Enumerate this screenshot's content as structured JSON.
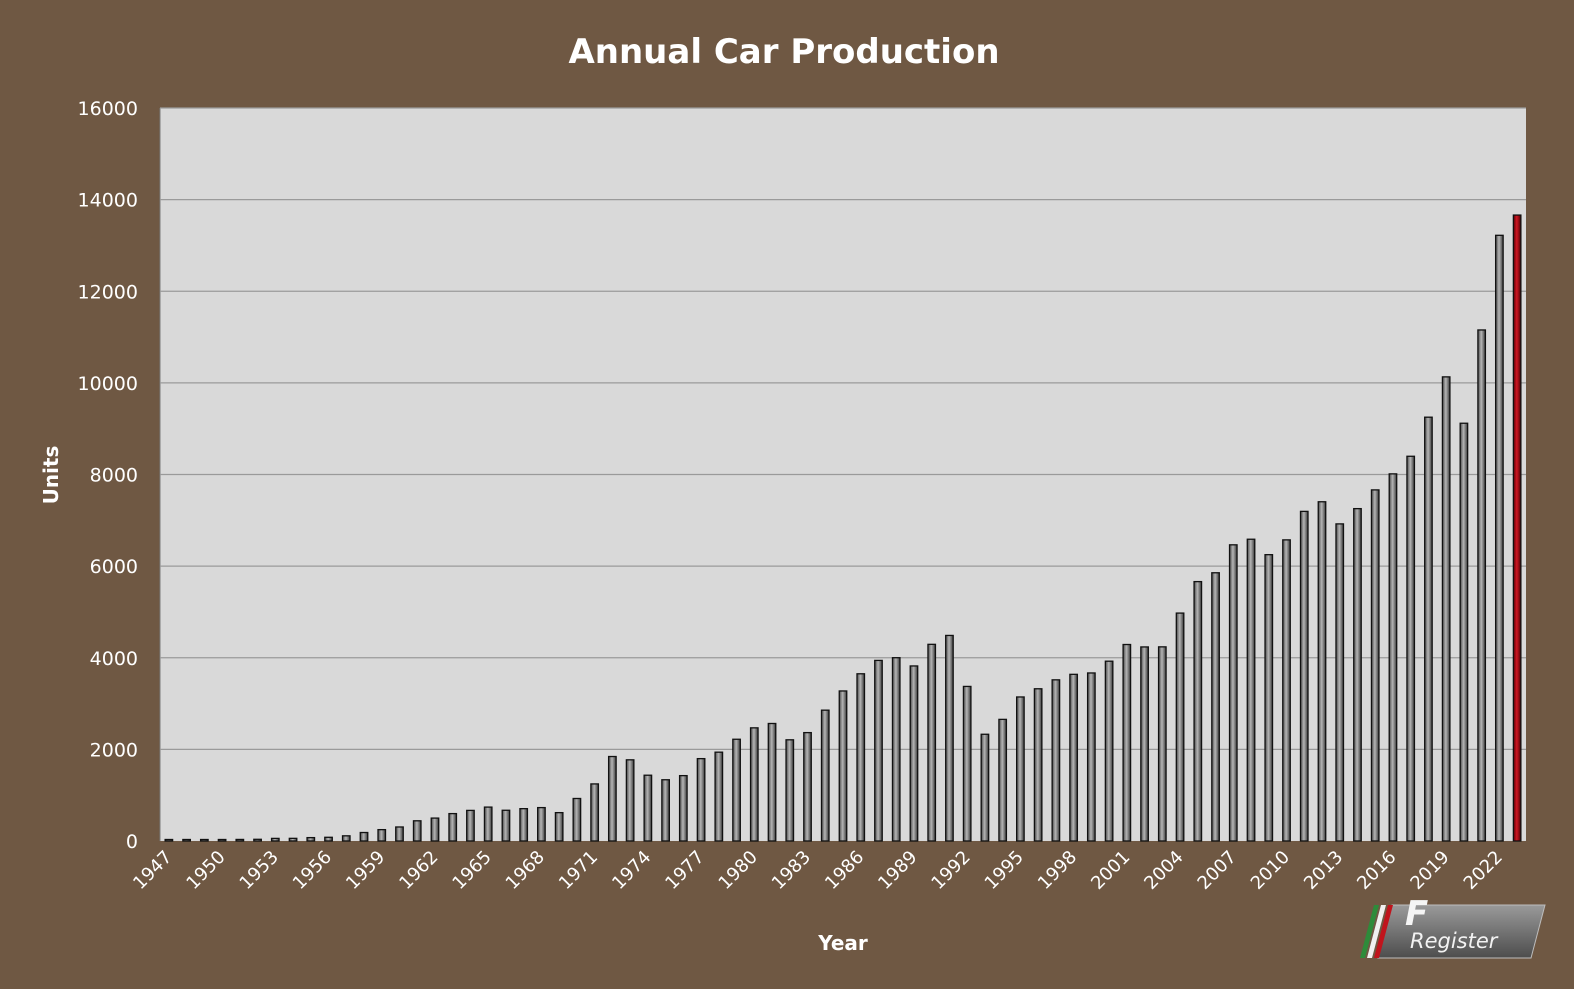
{
  "chart_data": {
    "type": "bar",
    "title": "Annual Car Production",
    "xlabel": "Year",
    "ylabel": "Units",
    "ylim": [
      0,
      16000
    ],
    "yticks": [
      0,
      2000,
      4000,
      6000,
      8000,
      10000,
      12000,
      14000,
      16000
    ],
    "ytick_labels": [
      "0",
      "2000",
      "4000",
      "6000",
      "8000",
      "10000",
      "12000",
      "14000",
      "16000"
    ],
    "xtick_labels": [
      "1947",
      "1950",
      "1953",
      "1956",
      "1959",
      "1962",
      "1965",
      "1968",
      "1971",
      "1974",
      "1977",
      "1980",
      "1983",
      "1986",
      "1989",
      "1992",
      "1995",
      "1998",
      "2001",
      "2004",
      "2007",
      "2010",
      "2013",
      "2016",
      "2019",
      "2022"
    ],
    "grid": true,
    "categories": [
      "1947",
      "1948",
      "1949",
      "1950",
      "1951",
      "1952",
      "1953",
      "1954",
      "1955",
      "1956",
      "1957",
      "1958",
      "1959",
      "1960",
      "1961",
      "1962",
      "1963",
      "1964",
      "1965",
      "1966",
      "1967",
      "1968",
      "1969",
      "1970",
      "1971",
      "1972",
      "1973",
      "1974",
      "1975",
      "1976",
      "1977",
      "1978",
      "1979",
      "1980",
      "1981",
      "1982",
      "1983",
      "1984",
      "1985",
      "1986",
      "1987",
      "1988",
      "1989",
      "1990",
      "1991",
      "1992",
      "1993",
      "1994",
      "1995",
      "1996",
      "1997",
      "1998",
      "1999",
      "2000",
      "2001",
      "2002",
      "2003",
      "2004",
      "2005",
      "2006",
      "2007",
      "2008",
      "2009",
      "2010",
      "2011",
      "2012",
      "2013",
      "2014",
      "2015",
      "2016",
      "2017",
      "2018",
      "2019",
      "2020",
      "2021",
      "2022",
      "2023"
    ],
    "values": [
      3,
      5,
      21,
      26,
      34,
      37,
      57,
      58,
      74,
      81,
      113,
      185,
      248,
      306,
      441,
      500,
      598,
      668,
      740,
      671,
      706,
      729,
      619,
      928,
      1246,
      1844,
      1772,
      1436,
      1337,
      1427,
      1798,
      1939,
      2221,
      2470,
      2565,
      2209,
      2366,
      2856,
      3275,
      3650,
      3942,
      4001,
      3821,
      4293,
      4487,
      3374,
      2330,
      2655,
      3144,
      3323,
      3518,
      3638,
      3668,
      3925,
      4289,
      4236,
      4238,
      4975,
      5662,
      5855,
      6465,
      6587,
      6250,
      6573,
      7195,
      7405,
      6922,
      7255,
      7664,
      8014,
      8398,
      9251,
      10131,
      9119,
      11155,
      13221,
      13663
    ],
    "bar_colors": {
      "default": "#7a7a7a",
      "highlight": "#a8101a"
    },
    "highlight_index": 76,
    "colors": {
      "background": "#6f5843",
      "plot_area": "#d9d9d9",
      "gridline": "#9a9a9a",
      "text": "#ffffff"
    }
  },
  "logo": {
    "text": "Register",
    "icon": "f-register-logo"
  }
}
